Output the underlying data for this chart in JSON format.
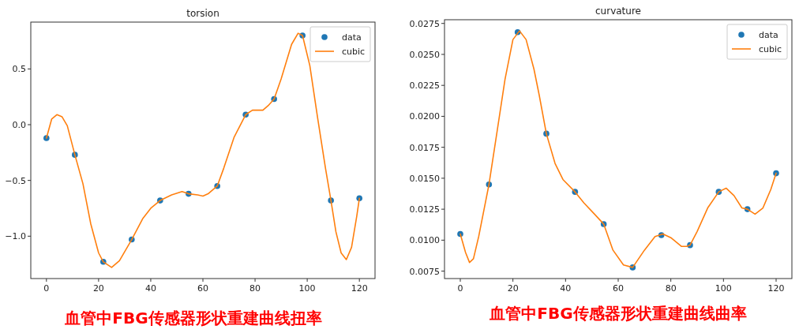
{
  "chart_data": [
    {
      "type": "line",
      "title": "torsion",
      "xlim": [
        -6,
        126
      ],
      "ylim": [
        -1.38,
        0.92
      ],
      "xticks": [
        0,
        20,
        40,
        60,
        80,
        100,
        120
      ],
      "yticks": [
        {
          "value": -1,
          "label": "−1.0"
        },
        {
          "value": -0.5,
          "label": "−0.5"
        },
        {
          "value": 0,
          "label": "0.0"
        },
        {
          "value": 0.5,
          "label": "0.5"
        }
      ],
      "legend": "top right",
      "series": [
        {
          "name": "data",
          "type": "scatter",
          "marker": "circle",
          "color": "#1f77b4",
          "x": [
            0,
            10.9,
            21.8,
            32.7,
            43.6,
            54.5,
            65.5,
            76.4,
            87.3,
            98.2,
            109.1,
            120
          ],
          "values": [
            -0.12,
            -0.27,
            -1.23,
            -1.03,
            -0.68,
            -0.62,
            -0.55,
            0.09,
            0.23,
            0.8,
            -0.68,
            -0.66
          ]
        },
        {
          "name": "cubic",
          "type": "line",
          "color": "#ff7f0e",
          "x": [
            0,
            2,
            4,
            6,
            8,
            10.9,
            14,
            17,
            20,
            21.8,
            25,
            28,
            32.7,
            37,
            40,
            43.6,
            48,
            52,
            54.5,
            58,
            60,
            62,
            65.5,
            68,
            72,
            76.4,
            79,
            83,
            85,
            87.3,
            90,
            94,
            96.5,
            98.2,
            101,
            104,
            107,
            109.1,
            111,
            113,
            115,
            117,
            119,
            120
          ],
          "values": [
            -0.12,
            0.05,
            0.09,
            0.07,
            -0.01,
            -0.27,
            -0.53,
            -0.89,
            -1.15,
            -1.23,
            -1.28,
            -1.22,
            -1.03,
            -0.84,
            -0.75,
            -0.68,
            -0.63,
            -0.6,
            -0.62,
            -0.63,
            -0.64,
            -0.62,
            -0.55,
            -0.39,
            -0.11,
            0.09,
            0.13,
            0.13,
            0.17,
            0.23,
            0.41,
            0.72,
            0.82,
            0.8,
            0.53,
            0.06,
            -0.39,
            -0.68,
            -0.96,
            -1.15,
            -1.21,
            -1.1,
            -0.82,
            -0.66
          ]
        }
      ],
      "annotations": [
        "血管中FBG传感器形状重建曲线扭率"
      ]
    },
    {
      "type": "line",
      "title": "curvature",
      "xlim": [
        -6,
        126
      ],
      "ylim": [
        0.0069,
        0.0278
      ],
      "xticks": [
        0,
        20,
        40,
        60,
        80,
        100,
        120
      ],
      "yticks": [
        {
          "value": 0.0075,
          "label": "0.0075"
        },
        {
          "value": 0.01,
          "label": "0.0100"
        },
        {
          "value": 0.0125,
          "label": "0.0125"
        },
        {
          "value": 0.015,
          "label": "0.0150"
        },
        {
          "value": 0.0175,
          "label": "0.0175"
        },
        {
          "value": 0.02,
          "label": "0.0200"
        },
        {
          "value": 0.0225,
          "label": "0.0225"
        },
        {
          "value": 0.025,
          "label": "0.0250"
        },
        {
          "value": 0.0275,
          "label": "0.0275"
        }
      ],
      "legend": "top right",
      "series": [
        {
          "name": "data",
          "type": "scatter",
          "marker": "circle",
          "color": "#1f77b4",
          "x": [
            0,
            10.9,
            21.8,
            32.7,
            43.6,
            54.5,
            65.5,
            76.4,
            87.3,
            98.2,
            109.1,
            120
          ],
          "values": [
            0.0105,
            0.0145,
            0.0268,
            0.0186,
            0.0139,
            0.0113,
            0.0078,
            0.0104,
            0.0096,
            0.0139,
            0.0125,
            0.0154
          ]
        },
        {
          "name": "cubic",
          "type": "line",
          "color": "#ff7f0e",
          "x": [
            0,
            2,
            3.5,
            5,
            7,
            10.9,
            14,
            17,
            20,
            22.5,
            25,
            28,
            30,
            32.7,
            36,
            39,
            43.6,
            47,
            51,
            54.5,
            58,
            62,
            65.5,
            70,
            74,
            77,
            80,
            84,
            86,
            87.3,
            90,
            94,
            98.2,
            101,
            104,
            107,
            109.1,
            112,
            115,
            118,
            120
          ],
          "values": [
            0.0105,
            0.009,
            0.0082,
            0.0085,
            0.0103,
            0.0145,
            0.0188,
            0.023,
            0.0262,
            0.0269,
            0.0262,
            0.0238,
            0.0217,
            0.0186,
            0.0162,
            0.0149,
            0.0139,
            0.013,
            0.0121,
            0.0113,
            0.0092,
            0.008,
            0.0078,
            0.0092,
            0.0103,
            0.0105,
            0.0102,
            0.0095,
            0.0095,
            0.0096,
            0.0107,
            0.0126,
            0.0139,
            0.0142,
            0.0136,
            0.0126,
            0.0125,
            0.0121,
            0.0126,
            0.0141,
            0.0154
          ]
        }
      ],
      "annotations": [
        "血管中FBG传感器形状重建曲线曲率"
      ]
    }
  ]
}
